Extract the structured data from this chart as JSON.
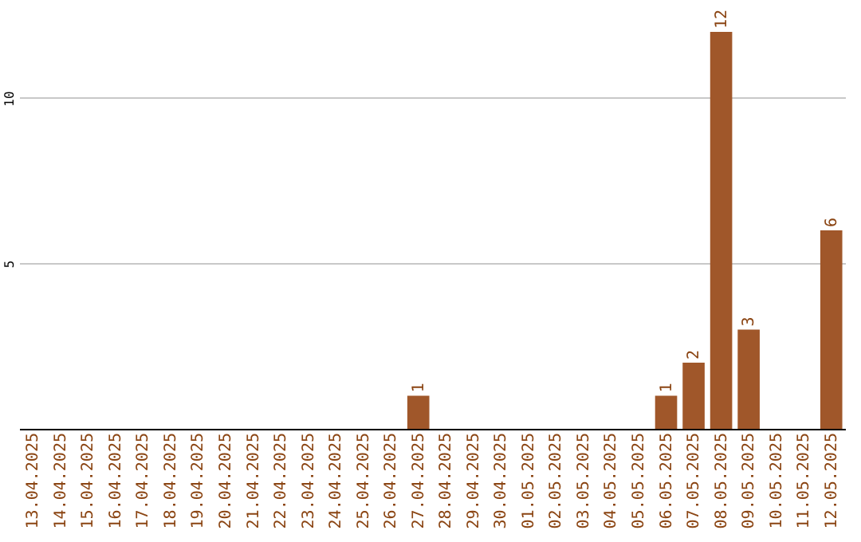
{
  "chart_data": {
    "type": "bar",
    "categories": [
      "13.04.2025",
      "14.04.2025",
      "15.04.2025",
      "16.04.2025",
      "17.04.2025",
      "18.04.2025",
      "19.04.2025",
      "20.04.2025",
      "21.04.2025",
      "22.04.2025",
      "23.04.2025",
      "24.04.2025",
      "25.04.2025",
      "26.04.2025",
      "27.04.2025",
      "28.04.2025",
      "29.04.2025",
      "30.04.2025",
      "01.05.2025",
      "02.05.2025",
      "03.05.2025",
      "04.05.2025",
      "05.05.2025",
      "06.05.2025",
      "07.05.2025",
      "08.05.2025",
      "09.05.2025",
      "10.05.2025",
      "11.05.2025",
      "12.05.2025"
    ],
    "values": [
      0,
      0,
      0,
      0,
      0,
      0,
      0,
      0,
      0,
      0,
      0,
      0,
      0,
      0,
      1,
      0,
      0,
      0,
      0,
      0,
      0,
      0,
      0,
      1,
      2,
      12,
      3,
      0,
      0,
      6
    ],
    "value_labels": [
      null,
      null,
      null,
      null,
      null,
      null,
      null,
      null,
      null,
      null,
      null,
      null,
      null,
      null,
      "1",
      null,
      null,
      null,
      null,
      null,
      null,
      null,
      null,
      "1",
      "2",
      "12",
      "3",
      null,
      null,
      "6"
    ],
    "color": "#a0572a",
    "ylim": [
      0,
      12
    ],
    "yticks": [
      5,
      10
    ],
    "grid": "y"
  }
}
